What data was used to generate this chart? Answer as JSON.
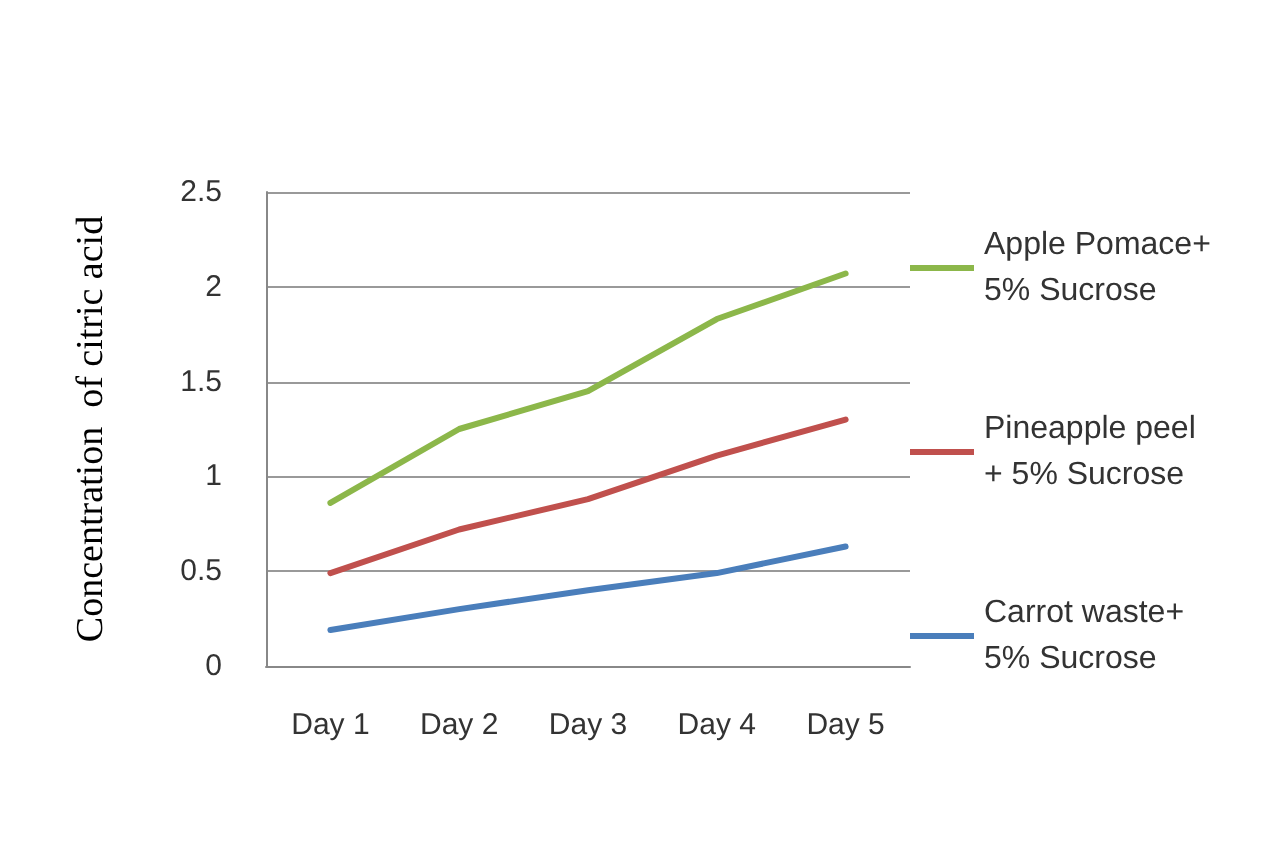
{
  "chart_data": {
    "type": "line",
    "ylabel": "Concentration  of citric acid",
    "categories": [
      "Day 1",
      "Day 2",
      "Day 3",
      "Day 4",
      "Day 5"
    ],
    "series": [
      {
        "name": "Apple Pomace+ 5% Sucrose",
        "color": "#8cb74a",
        "values": [
          0.86,
          1.25,
          1.45,
          1.83,
          2.07
        ]
      },
      {
        "name": "Pineapple peel + 5% Sucrose",
        "color": "#c0504d",
        "values": [
          0.49,
          0.72,
          0.88,
          1.11,
          1.3
        ]
      },
      {
        "name": "Carrot waste+ 5% Sucrose",
        "color": "#4a7ebb",
        "values": [
          0.19,
          0.3,
          0.4,
          0.49,
          0.63
        ]
      }
    ],
    "ylim": [
      0,
      2.5
    ],
    "yticks": [
      0,
      0.5,
      1,
      1.5,
      2,
      2.5
    ],
    "grid": "y",
    "legend": "right",
    "marker": "none",
    "line_style": "solid"
  }
}
